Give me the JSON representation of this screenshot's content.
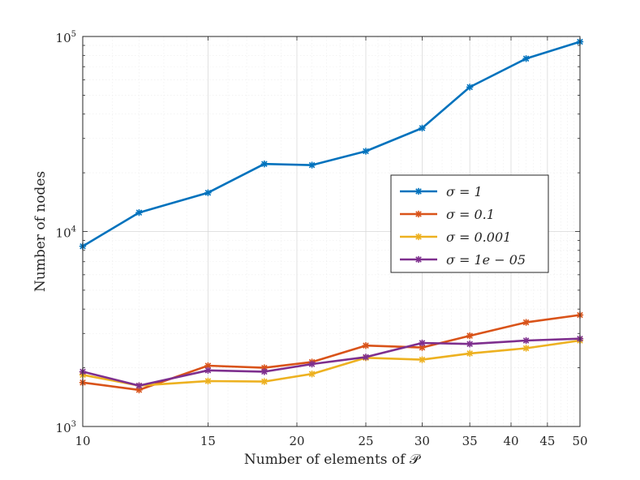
{
  "chart_data": {
    "type": "line",
    "title": "",
    "xlabel": "Number of elements of 𝒫",
    "ylabel": "Number of nodes",
    "xscale": "log",
    "yscale": "log",
    "xlim": [
      10,
      50
    ],
    "ylim": [
      1000,
      100000
    ],
    "grid": true,
    "legend_position": "center-right",
    "x": [
      10,
      12,
      15,
      18,
      21,
      25,
      30,
      35,
      42,
      50
    ],
    "x_ticks": [
      {
        "value": 10,
        "label": "10"
      },
      {
        "value": 15,
        "label": "15"
      },
      {
        "value": 20,
        "label": "20"
      },
      {
        "value": 25,
        "label": "25"
      },
      {
        "value": 30,
        "label": "30"
      },
      {
        "value": 35,
        "label": "35"
      },
      {
        "value": 40,
        "label": "40"
      },
      {
        "value": 45,
        "label": "45"
      },
      {
        "value": 50,
        "label": "50"
      }
    ],
    "y_ticks": [
      {
        "value": 1000,
        "base": "10",
        "exp": "3"
      },
      {
        "value": 10000,
        "base": "10",
        "exp": "4"
      },
      {
        "value": 100000,
        "base": "10",
        "exp": "5"
      }
    ],
    "series": [
      {
        "name": "σ = 1",
        "color": "#0072BD",
        "values": [
          8400,
          12500,
          15800,
          22200,
          21900,
          25800,
          33900,
          55000,
          77000,
          94000
        ]
      },
      {
        "name": "σ = 0.1",
        "color": "#D95319",
        "values": [
          1680,
          1540,
          2050,
          2000,
          2140,
          2600,
          2540,
          2920,
          3420,
          3730
        ]
      },
      {
        "name": "σ = 0.001",
        "color": "#EDB120",
        "values": [
          1840,
          1620,
          1710,
          1700,
          1860,
          2250,
          2200,
          2370,
          2520,
          2760
        ]
      },
      {
        "name": "σ = 1e − 05",
        "color": "#7E2F8E",
        "values": [
          1910,
          1620,
          1940,
          1910,
          2090,
          2270,
          2680,
          2650,
          2760,
          2820
        ]
      }
    ]
  }
}
